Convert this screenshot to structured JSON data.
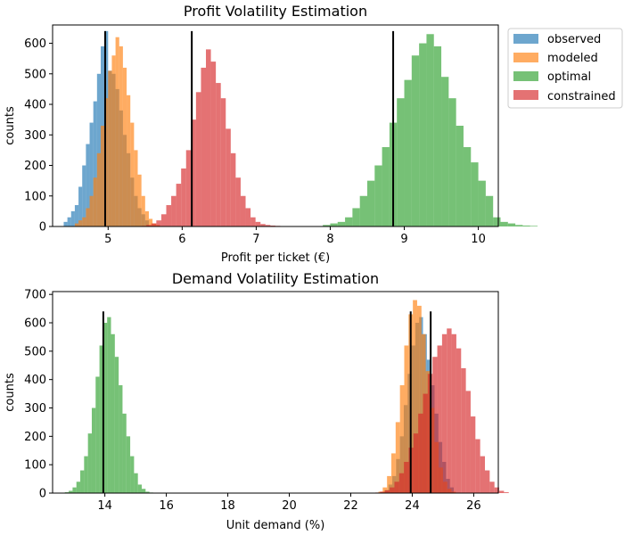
{
  "colors": {
    "observed": "#1f77b4",
    "modeled": "#ff7f0e",
    "optimal": "#2ca02c",
    "constrained": "#d62728",
    "marker": "#000000"
  },
  "chart_data": [
    {
      "type": "histogram",
      "title": "Profit Volatility Estimation",
      "xlabel": "Profit per ticket (€)",
      "ylabel": "counts",
      "xlim": [
        4.25,
        10.27
      ],
      "ylim": [
        0,
        660
      ],
      "xticks": [
        5,
        6,
        7,
        8,
        9,
        10
      ],
      "yticks": [
        0,
        100,
        200,
        300,
        400,
        500,
        600
      ],
      "bar_alpha": 0.65,
      "legend": {
        "placement": "outside-top-right",
        "entries": [
          "observed",
          "modeled",
          "optimal",
          "constrained"
        ]
      },
      "series": [
        {
          "name": "observed",
          "color_key": "observed",
          "bin_start": 4.4,
          "bin_width": 0.05,
          "counts": [
            15,
            30,
            50,
            70,
            130,
            200,
            270,
            340,
            410,
            500,
            590,
            640,
            510,
            500,
            450,
            380,
            300,
            240,
            160,
            100,
            60,
            40,
            20
          ]
        },
        {
          "name": "modeled",
          "color_key": "modeled",
          "bin_start": 4.55,
          "bin_width": 0.05,
          "counts": [
            10,
            20,
            30,
            60,
            100,
            160,
            240,
            330,
            420,
            510,
            560,
            620,
            590,
            520,
            430,
            340,
            250,
            170,
            100,
            50,
            25,
            10,
            5
          ]
        },
        {
          "name": "optimal",
          "color_key": "optimal",
          "bin_start": 7.9,
          "bin_width": 0.1,
          "counts": [
            5,
            10,
            15,
            30,
            60,
            100,
            150,
            200,
            260,
            340,
            420,
            480,
            560,
            600,
            630,
            590,
            490,
            420,
            330,
            260,
            210,
            150,
            100,
            30,
            15,
            10,
            5,
            3,
            2
          ]
        },
        {
          "name": "constrained",
          "color_key": "constrained",
          "bin_start": 5.45,
          "bin_width": 0.067,
          "counts": [
            2,
            5,
            10,
            20,
            40,
            70,
            100,
            140,
            190,
            250,
            350,
            440,
            520,
            580,
            540,
            470,
            420,
            320,
            240,
            160,
            100,
            60,
            30,
            15,
            8,
            5,
            3,
            2
          ]
        }
      ],
      "vlines": [
        4.96,
        6.13,
        8.85
      ],
      "vline_top": 640
    },
    {
      "type": "histogram",
      "title": "Demand Volatility Estimation",
      "xlabel": "Unit demand (%)",
      "ylabel": "counts",
      "xlim": [
        12.3,
        26.8
      ],
      "ylim": [
        0,
        710
      ],
      "xticks": [
        14,
        16,
        18,
        20,
        22,
        24,
        26
      ],
      "yticks": [
        0,
        100,
        200,
        300,
        400,
        500,
        600,
        700
      ],
      "bar_alpha": 0.65,
      "series": [
        {
          "name": "observed",
          "color_key": "observed",
          "bin_start": 23.1,
          "bin_width": 0.125,
          "counts": [
            10,
            30,
            60,
            120,
            200,
            310,
            420,
            520,
            600,
            620,
            560,
            470,
            380,
            280,
            180,
            110,
            50,
            20
          ]
        },
        {
          "name": "modeled",
          "color_key": "modeled",
          "bin_start": 22.9,
          "bin_width": 0.14,
          "counts": [
            5,
            20,
            60,
            140,
            250,
            380,
            520,
            630,
            680,
            660,
            560,
            430,
            300,
            180,
            90,
            40,
            15,
            5
          ]
        },
        {
          "name": "optimal",
          "color_key": "optimal",
          "bin_start": 12.7,
          "bin_width": 0.125,
          "counts": [
            3,
            8,
            20,
            40,
            80,
            130,
            210,
            300,
            410,
            520,
            600,
            620,
            560,
            480,
            380,
            280,
            200,
            130,
            70,
            30,
            15,
            5,
            2
          ]
        },
        {
          "name": "constrained",
          "color_key": "constrained",
          "bin_start": 22.8,
          "bin_width": 0.155,
          "counts": [
            2,
            5,
            10,
            20,
            40,
            70,
            110,
            160,
            210,
            280,
            350,
            420,
            480,
            520,
            560,
            580,
            560,
            510,
            440,
            360,
            270,
            190,
            130,
            80,
            40,
            20,
            8,
            3
          ]
        }
      ],
      "vlines": [
        13.95,
        23.95,
        24.6
      ],
      "vline_top": 640
    }
  ]
}
